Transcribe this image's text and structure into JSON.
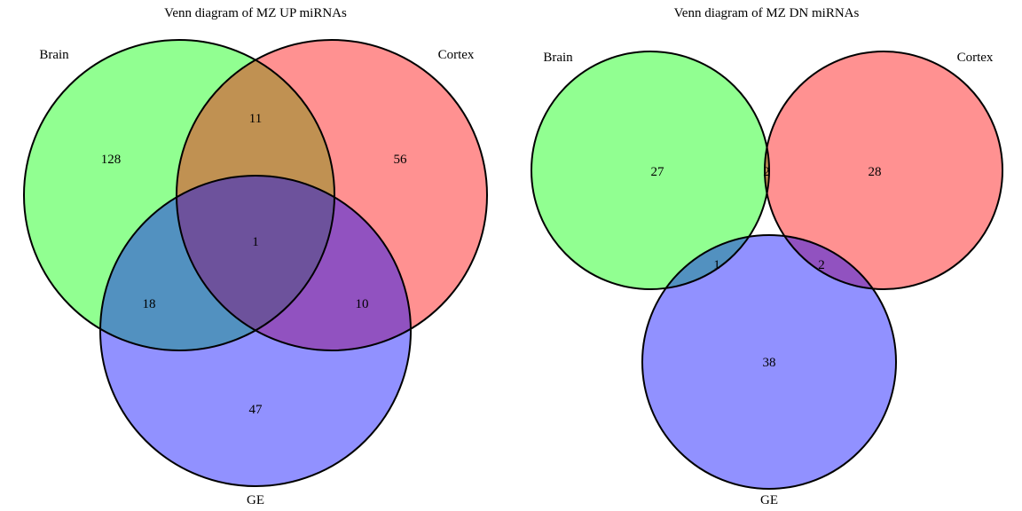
{
  "colors": {
    "brain": "#00ff00",
    "cortex": "#ff0000",
    "ge": "#0000ff",
    "fill_opacity": 0.43,
    "stroke": "#000000",
    "background": "#ffffff"
  },
  "diagrams": [
    {
      "title": "Venn diagram of MZ UP miRNAs",
      "sets": {
        "brain": "Brain",
        "cortex": "Cortex",
        "ge": "GE"
      },
      "regions": {
        "brain_only": "128",
        "cortex_only": "56",
        "ge_only": "47",
        "brain_cortex": "11",
        "brain_ge": "18",
        "cortex_ge": "10",
        "all_three": "1"
      }
    },
    {
      "title": "Venn diagram of MZ DN miRNAs",
      "sets": {
        "brain": "Brain",
        "cortex": "Cortex",
        "ge": "GE"
      },
      "regions": {
        "brain_only": "27",
        "cortex_only": "28",
        "ge_only": "38",
        "brain_cortex": "2",
        "brain_ge": "1",
        "cortex_ge": "2"
      }
    }
  ]
}
